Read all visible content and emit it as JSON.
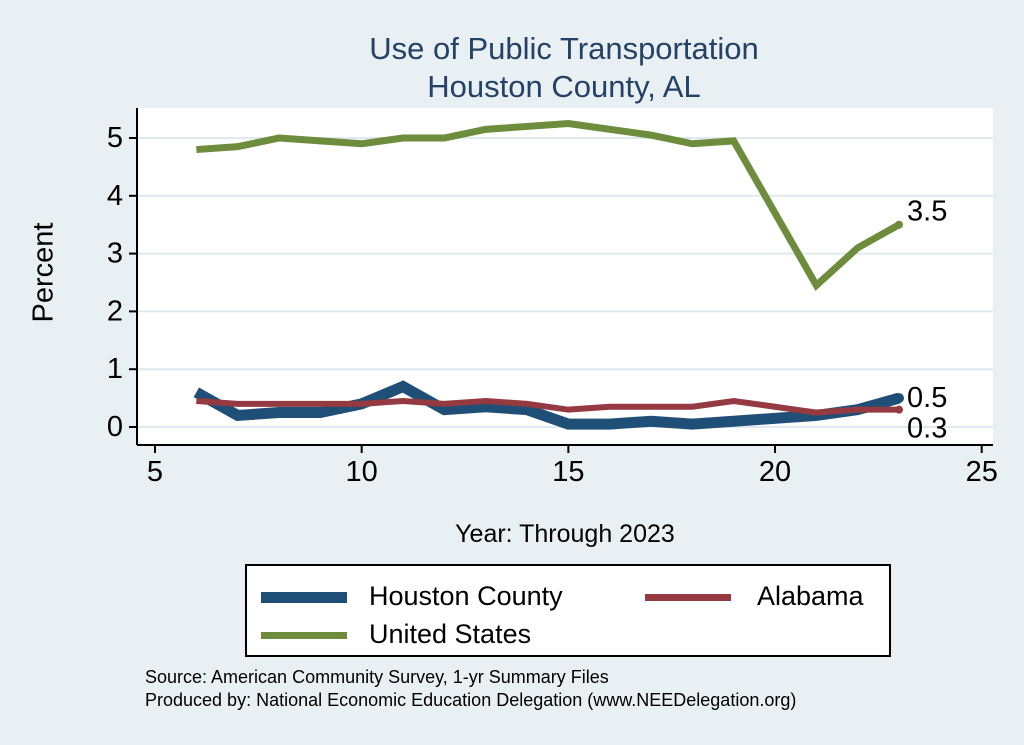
{
  "title": {
    "line1": "Use of Public Transportation",
    "line2": "Houston County, AL"
  },
  "axis": {
    "ylabel": "Percent",
    "xlabel": "Year: Through 2023"
  },
  "caption": {
    "line1": "Source: American Community Survey, 1-yr Summary Files",
    "line2": "Produced by: National Economic Education Delegation (www.NEEDelegation.org)"
  },
  "colors": {
    "page_background": "#e8f0f3",
    "plot_background": "#ffffff",
    "gridline": "#dfeaf0",
    "axis": "#000000",
    "title_text": "#244166",
    "houston_county": "#1f4e76",
    "alabama": "#943a40",
    "united_states": "#6d8c3c"
  },
  "chart_data": {
    "type": "line",
    "title": "Use of Public Transportation — Houston County, AL",
    "xlabel": "Year: Through 2023",
    "ylabel": "Percent",
    "xlim": [
      5,
      25
    ],
    "ylim": [
      0,
      5.5
    ],
    "x_ticks": [
      5,
      10,
      15,
      20,
      25
    ],
    "y_ticks": [
      0,
      1,
      2,
      3,
      4,
      5
    ],
    "grid": true,
    "legend_position": "bottom",
    "x": [
      6,
      7,
      8,
      9,
      10,
      11,
      12,
      13,
      14,
      15,
      16,
      17,
      18,
      19,
      21,
      22,
      23
    ],
    "series": [
      {
        "name": "Houston County",
        "color": "#1f4e76",
        "values": [
          0.6,
          0.2,
          0.25,
          0.25,
          0.4,
          0.7,
          0.3,
          0.35,
          0.3,
          0.05,
          0.05,
          0.1,
          0.05,
          0.1,
          0.2,
          0.3,
          0.5
        ],
        "end_label": "0.5"
      },
      {
        "name": "Alabama",
        "color": "#943a40",
        "values": [
          0.45,
          0.4,
          0.4,
          0.4,
          0.4,
          0.45,
          0.4,
          0.45,
          0.4,
          0.3,
          0.35,
          0.35,
          0.35,
          0.45,
          0.25,
          0.3,
          0.3
        ],
        "end_label": "0.3"
      },
      {
        "name": "United States",
        "color": "#6d8c3c",
        "values": [
          4.8,
          4.85,
          5.0,
          4.95,
          4.9,
          5.0,
          5.0,
          5.15,
          5.2,
          5.25,
          5.15,
          5.05,
          4.9,
          4.95,
          2.45,
          3.1,
          3.5
        ],
        "end_label": "3.5"
      }
    ]
  }
}
